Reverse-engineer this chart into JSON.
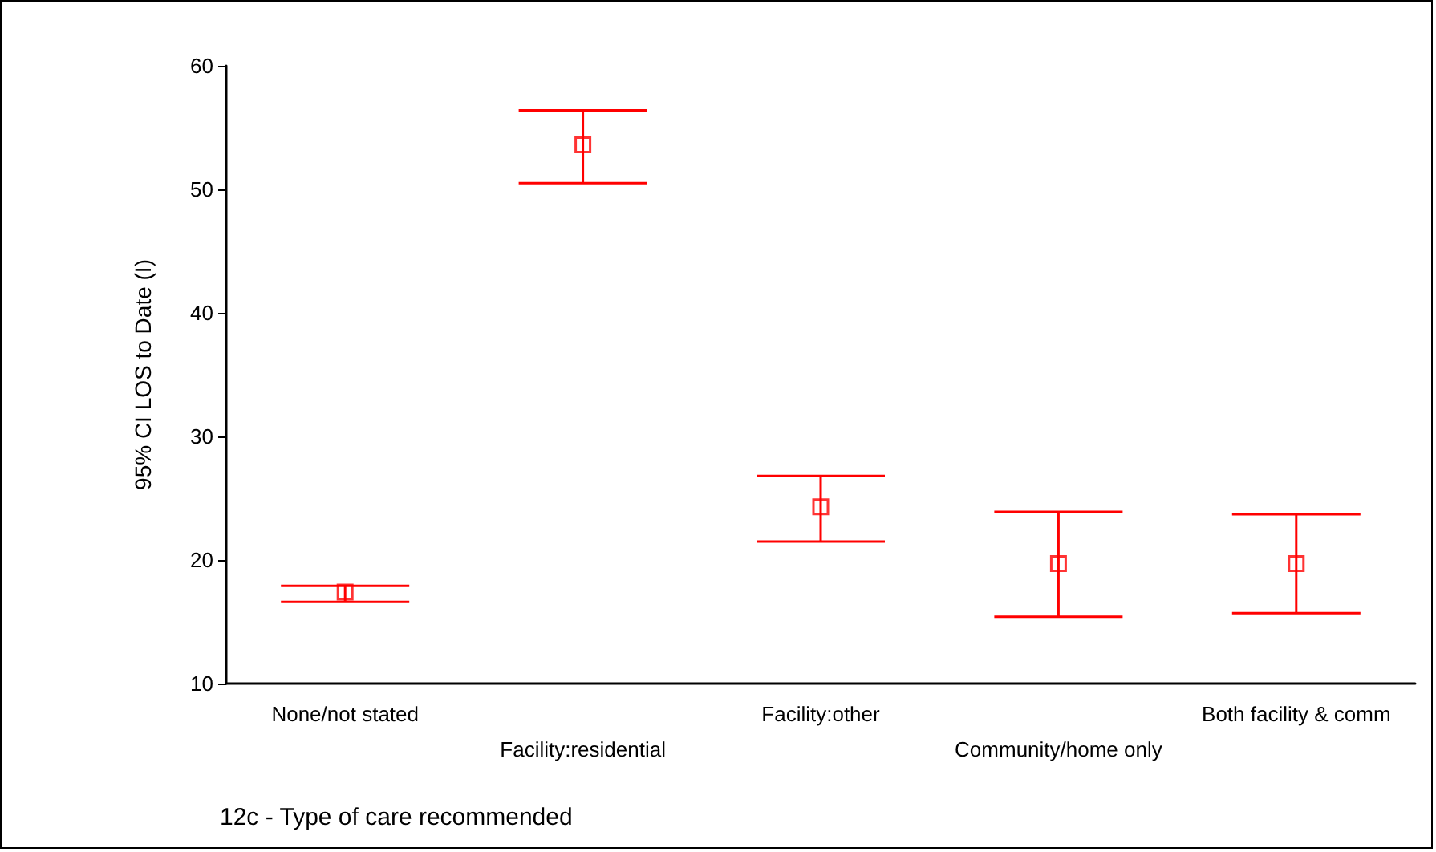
{
  "chart_data": {
    "type": "scatter",
    "xlabel": "12c - Type of care recommended",
    "ylabel": "95% CI LOS to Date (I)",
    "categories": [
      "None/not stated",
      "Facility:residential",
      "Facility:other",
      "Community/home only",
      "Both facility & comm"
    ],
    "values": [
      17.4,
      53.6,
      24.3,
      19.7,
      19.7
    ],
    "errors": [
      [
        16.6,
        17.9
      ],
      [
        50.5,
        56.4
      ],
      [
        21.5,
        26.8
      ],
      [
        15.4,
        23.9
      ],
      [
        15.7,
        23.7
      ]
    ],
    "color": "#ff0000",
    "marker": "square",
    "ylim": [
      10,
      60
    ],
    "yticks": [
      10,
      20,
      30,
      40,
      50,
      60
    ],
    "grid": false
  }
}
